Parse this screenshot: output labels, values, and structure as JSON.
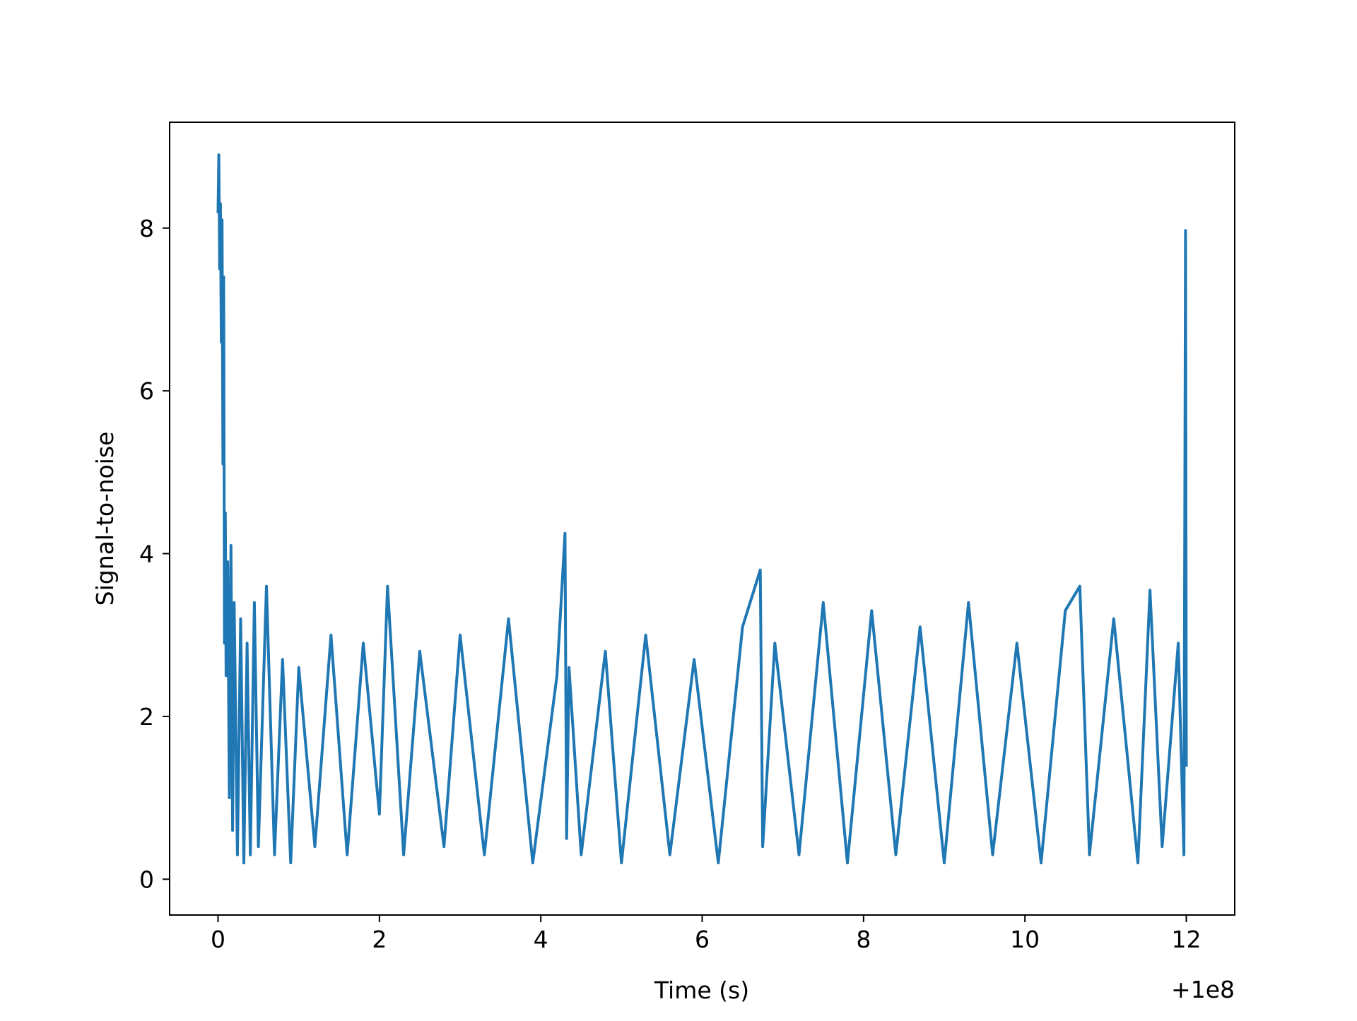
{
  "chart_data": {
    "type": "line",
    "title": "",
    "xlabel": "Time (s)",
    "ylabel": "Signal-to-noise",
    "x_offset_label": "+1e8",
    "xlim": [
      -0.6,
      12.6
    ],
    "ylim": [
      -0.44,
      9.3
    ],
    "xticks": [
      0,
      2,
      4,
      6,
      8,
      10,
      12
    ],
    "xtick_labels": [
      "0",
      "2",
      "4",
      "6",
      "8",
      "10",
      "12"
    ],
    "yticks": [
      0,
      2,
      4,
      6,
      8
    ],
    "ytick_labels": [
      "0",
      "2",
      "4",
      "6",
      "8"
    ],
    "grid": false,
    "legend": "none",
    "colors": {
      "line": "#1f77b4",
      "axes": "#000000",
      "background": "#ffffff"
    },
    "series": [
      {
        "x": [
          0.0,
          0.01,
          0.02,
          0.03,
          0.04,
          0.05,
          0.06,
          0.07,
          0.08,
          0.09,
          0.1,
          0.12,
          0.14,
          0.16,
          0.18,
          0.2,
          0.24,
          0.28,
          0.32,
          0.36,
          0.4,
          0.45,
          0.5,
          0.6,
          0.7,
          0.8,
          0.9,
          1.0,
          1.2,
          1.4,
          1.6,
          1.8,
          2.0,
          2.1,
          2.3,
          2.5,
          2.8,
          3.0,
          3.3,
          3.6,
          3.9,
          4.2,
          4.3,
          4.32,
          4.35,
          4.5,
          4.8,
          5.0,
          5.3,
          5.6,
          5.9,
          6.2,
          6.5,
          6.72,
          6.75,
          6.9,
          7.2,
          7.5,
          7.8,
          8.1,
          8.4,
          8.7,
          9.0,
          9.3,
          9.6,
          9.9,
          10.2,
          10.5,
          10.68,
          10.8,
          11.1,
          11.4,
          11.55,
          11.7,
          11.9,
          11.97,
          11.99,
          12.0
        ],
        "y": [
          8.2,
          8.9,
          7.5,
          8.3,
          6.6,
          8.1,
          5.1,
          7.4,
          2.9,
          4.5,
          2.5,
          3.9,
          1.0,
          4.1,
          0.6,
          3.4,
          0.3,
          3.2,
          0.2,
          2.9,
          0.3,
          3.4,
          0.4,
          3.6,
          0.3,
          2.7,
          0.2,
          2.6,
          0.4,
          3.0,
          0.3,
          2.9,
          0.8,
          3.6,
          0.3,
          2.8,
          0.4,
          3.0,
          0.3,
          3.2,
          0.2,
          2.5,
          4.25,
          0.5,
          2.6,
          0.3,
          2.8,
          0.2,
          3.0,
          0.3,
          2.7,
          0.2,
          3.1,
          3.8,
          0.4,
          2.9,
          0.3,
          3.4,
          0.2,
          3.3,
          0.3,
          3.1,
          0.2,
          3.4,
          0.3,
          2.9,
          0.2,
          3.3,
          3.6,
          0.3,
          3.2,
          0.2,
          3.55,
          0.4,
          2.9,
          0.3,
          7.97,
          1.4
        ]
      }
    ]
  }
}
